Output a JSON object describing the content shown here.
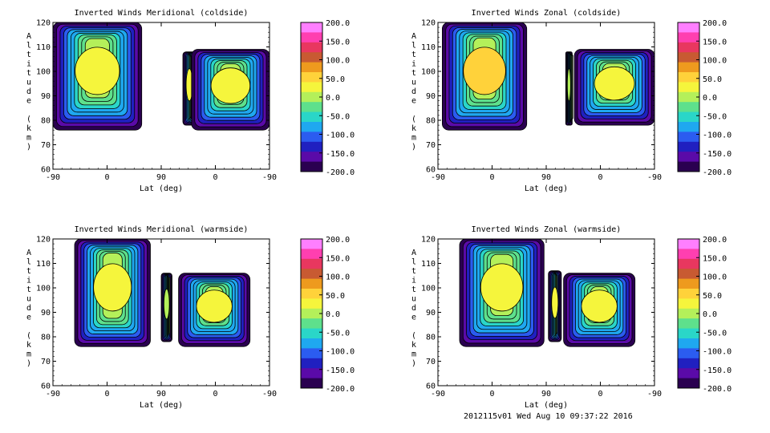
{
  "footer": "2012115v01 Wed Aug 10 09:37:22 2016",
  "colorbar": {
    "ticks": [
      "200.0",
      "150.0",
      "100.0",
      "50.0",
      "0.0",
      "-50.0",
      "-100.0",
      "-150.0",
      "-200.0"
    ],
    "colors": [
      "#ff7fff",
      "#ff3fb0",
      "#e8375f",
      "#c85a32",
      "#ee9a1e",
      "#ffd23a",
      "#f5f53c",
      "#b4f05a",
      "#5ee08c",
      "#2ad6c8",
      "#1fa8f0",
      "#2b5cf0",
      "#2020c0",
      "#5a0aa8",
      "#2a0050"
    ]
  },
  "chart_data": [
    {
      "type": "heatmap",
      "title": "Inverted Winds Meridional (coldside)",
      "xlabel": "Lat (deg)",
      "ylabel": "Altitude (km)",
      "xticks": [
        "-90",
        "0",
        "90",
        "0",
        "-90"
      ],
      "yticks": [
        "60",
        "70",
        "80",
        "90",
        "100",
        "110",
        "120"
      ],
      "ylim": [
        60,
        120
      ],
      "zlim": [
        -200,
        200
      ],
      "blocks": [
        {
          "x0": 0.0,
          "x1": 0.41,
          "z0": 76,
          "z1": 120,
          "base": 10
        },
        {
          "x0": 0.6,
          "x1": 0.66,
          "z0": 78,
          "z1": 108,
          "base": 5
        },
        {
          "x0": 0.64,
          "x1": 1.0,
          "z0": 76,
          "z1": 109,
          "base": 10
        }
      ]
    },
    {
      "type": "heatmap",
      "title": "Inverted Winds Zonal (coldside)",
      "xlabel": "Lat (deg)",
      "ylabel": "Altitude (km)",
      "xticks": [
        "-90",
        "0",
        "90",
        "0",
        "-90"
      ],
      "yticks": [
        "60",
        "70",
        "80",
        "90",
        "100",
        "110",
        "120"
      ],
      "ylim": [
        60,
        120
      ],
      "zlim": [
        -200,
        200
      ],
      "blocks": [
        {
          "x0": 0.02,
          "x1": 0.41,
          "z0": 76,
          "z1": 120,
          "base": 25
        },
        {
          "x0": 0.59,
          "x1": 0.62,
          "z0": 78,
          "z1": 108,
          "base": -10
        },
        {
          "x0": 0.63,
          "x1": 1.0,
          "z0": 78,
          "z1": 109,
          "base": 5
        }
      ]
    },
    {
      "type": "heatmap",
      "title": "Inverted Winds Meridional (warmside)",
      "xlabel": "Lat (deg)",
      "ylabel": "Altitude (km)",
      "xticks": [
        "-90",
        "0",
        "90",
        "0",
        "-90"
      ],
      "yticks": [
        "60",
        "70",
        "80",
        "90",
        "100",
        "110",
        "120"
      ],
      "ylim": [
        60,
        120
      ],
      "zlim": [
        -200,
        200
      ],
      "blocks": [
        {
          "x0": 0.1,
          "x1": 0.45,
          "z0": 76,
          "z1": 120,
          "base": 0
        },
        {
          "x0": 0.5,
          "x1": 0.55,
          "z0": 78,
          "z1": 106,
          "base": -10
        },
        {
          "x0": 0.58,
          "x1": 0.91,
          "z0": 76,
          "z1": 106,
          "base": 5
        }
      ]
    },
    {
      "type": "heatmap",
      "title": "Inverted Winds Zonal (warmside)",
      "xlabel": "Lat (deg)",
      "ylabel": "Altitude (km)",
      "xticks": [
        "-90",
        "0",
        "90",
        "0",
        "-90"
      ],
      "yticks": [
        "60",
        "70",
        "80",
        "90",
        "100",
        "110",
        "120"
      ],
      "ylim": [
        60,
        120
      ],
      "zlim": [
        -200,
        200
      ],
      "blocks": [
        {
          "x0": 0.1,
          "x1": 0.49,
          "z0": 76,
          "z1": 120,
          "base": 20
        },
        {
          "x0": 0.51,
          "x1": 0.57,
          "z0": 78,
          "z1": 107,
          "base": -5
        },
        {
          "x0": 0.58,
          "x1": 0.91,
          "z0": 76,
          "z1": 106,
          "base": 0
        }
      ]
    }
  ]
}
